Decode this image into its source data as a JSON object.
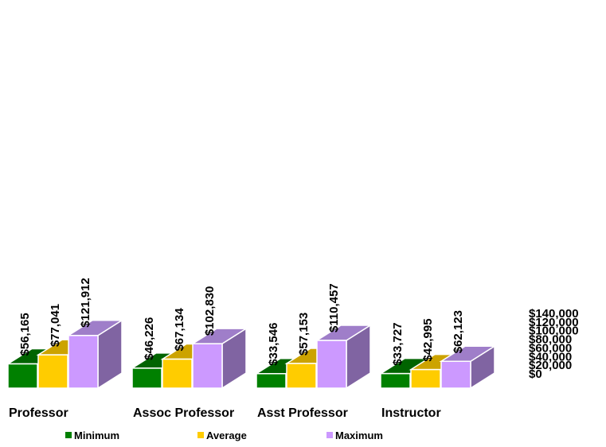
{
  "chart_data": {
    "type": "bar",
    "categories": [
      "Professor",
      "Assoc Professor",
      "Asst Professor",
      "Instructor"
    ],
    "series": [
      {
        "name": "Minimum",
        "values": [
          56165,
          46226,
          33546,
          33727
        ],
        "labels": [
          "$56,165",
          "$46,226",
          "$33,546",
          "$33,727"
        ]
      },
      {
        "name": "Average",
        "values": [
          77041,
          67134,
          57153,
          42995
        ],
        "labels": [
          "$77,041",
          "$67,134",
          "$57,153",
          "$42,995"
        ]
      },
      {
        "name": "Maximum",
        "values": [
          121912,
          102830,
          110457,
          62123
        ],
        "labels": [
          "$121,912",
          "$102,830",
          "$110,457",
          "$62,123"
        ]
      }
    ],
    "y_ticks": [
      {
        "value": 0,
        "label": "$0"
      },
      {
        "value": 20000,
        "label": "$20,000"
      },
      {
        "value": 40000,
        "label": "$40,000"
      },
      {
        "value": 60000,
        "label": "$60,000"
      },
      {
        "value": 80000,
        "label": "$80,000"
      },
      {
        "value": 100000,
        "label": "$100,000"
      },
      {
        "value": 120000,
        "label": "$120,000"
      },
      {
        "value": 140000,
        "label": "$140,000"
      }
    ],
    "ylim": [
      0,
      140000
    ],
    "title": "",
    "xlabel": "",
    "ylabel": "",
    "y_axis_side": "right",
    "grid": false,
    "legend_position": "bottom",
    "colors": {
      "Minimum": {
        "front": "#008000",
        "side": "#004d00",
        "top": "#006400"
      },
      "Average": {
        "front": "#ffcc00",
        "side": "#b38f00",
        "top": "#cca300"
      },
      "Maximum": {
        "front": "#cc99ff",
        "side": "#8064a2",
        "top": "#9f7ec9"
      }
    }
  }
}
